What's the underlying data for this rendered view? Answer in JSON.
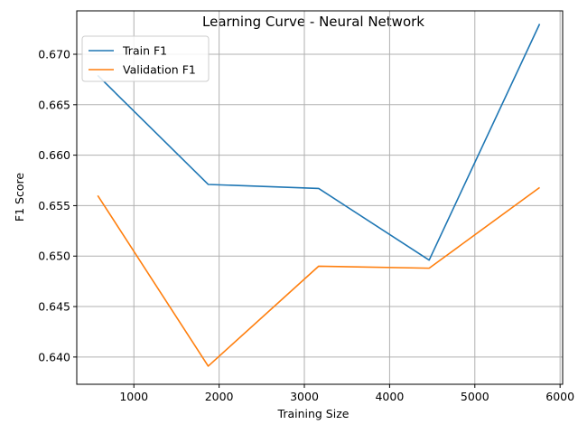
{
  "chart_data": {
    "type": "line",
    "title": "Learning Curve - Neural Network",
    "xlabel": "Training Size",
    "ylabel": "F1 Score",
    "xlim": [
      330,
      6030
    ],
    "ylim": [
      0.6373,
      0.6743
    ],
    "xticks": [
      1000,
      2000,
      3000,
      4000,
      5000,
      6000
    ],
    "yticks": [
      0.64,
      0.645,
      0.65,
      0.655,
      0.66,
      0.665,
      0.67
    ],
    "x": [
      576,
      1872,
      3168,
      4464,
      5760
    ],
    "series": [
      {
        "name": "Train F1",
        "color": "#1f77b4",
        "values": [
          0.6679,
          0.6571,
          0.6567,
          0.6496,
          0.673
        ]
      },
      {
        "name": "Validation F1",
        "color": "#ff7f0e",
        "values": [
          0.656,
          0.6391,
          0.649,
          0.6488,
          0.6568
        ]
      }
    ],
    "grid": true,
    "legend_position": "top-left"
  }
}
